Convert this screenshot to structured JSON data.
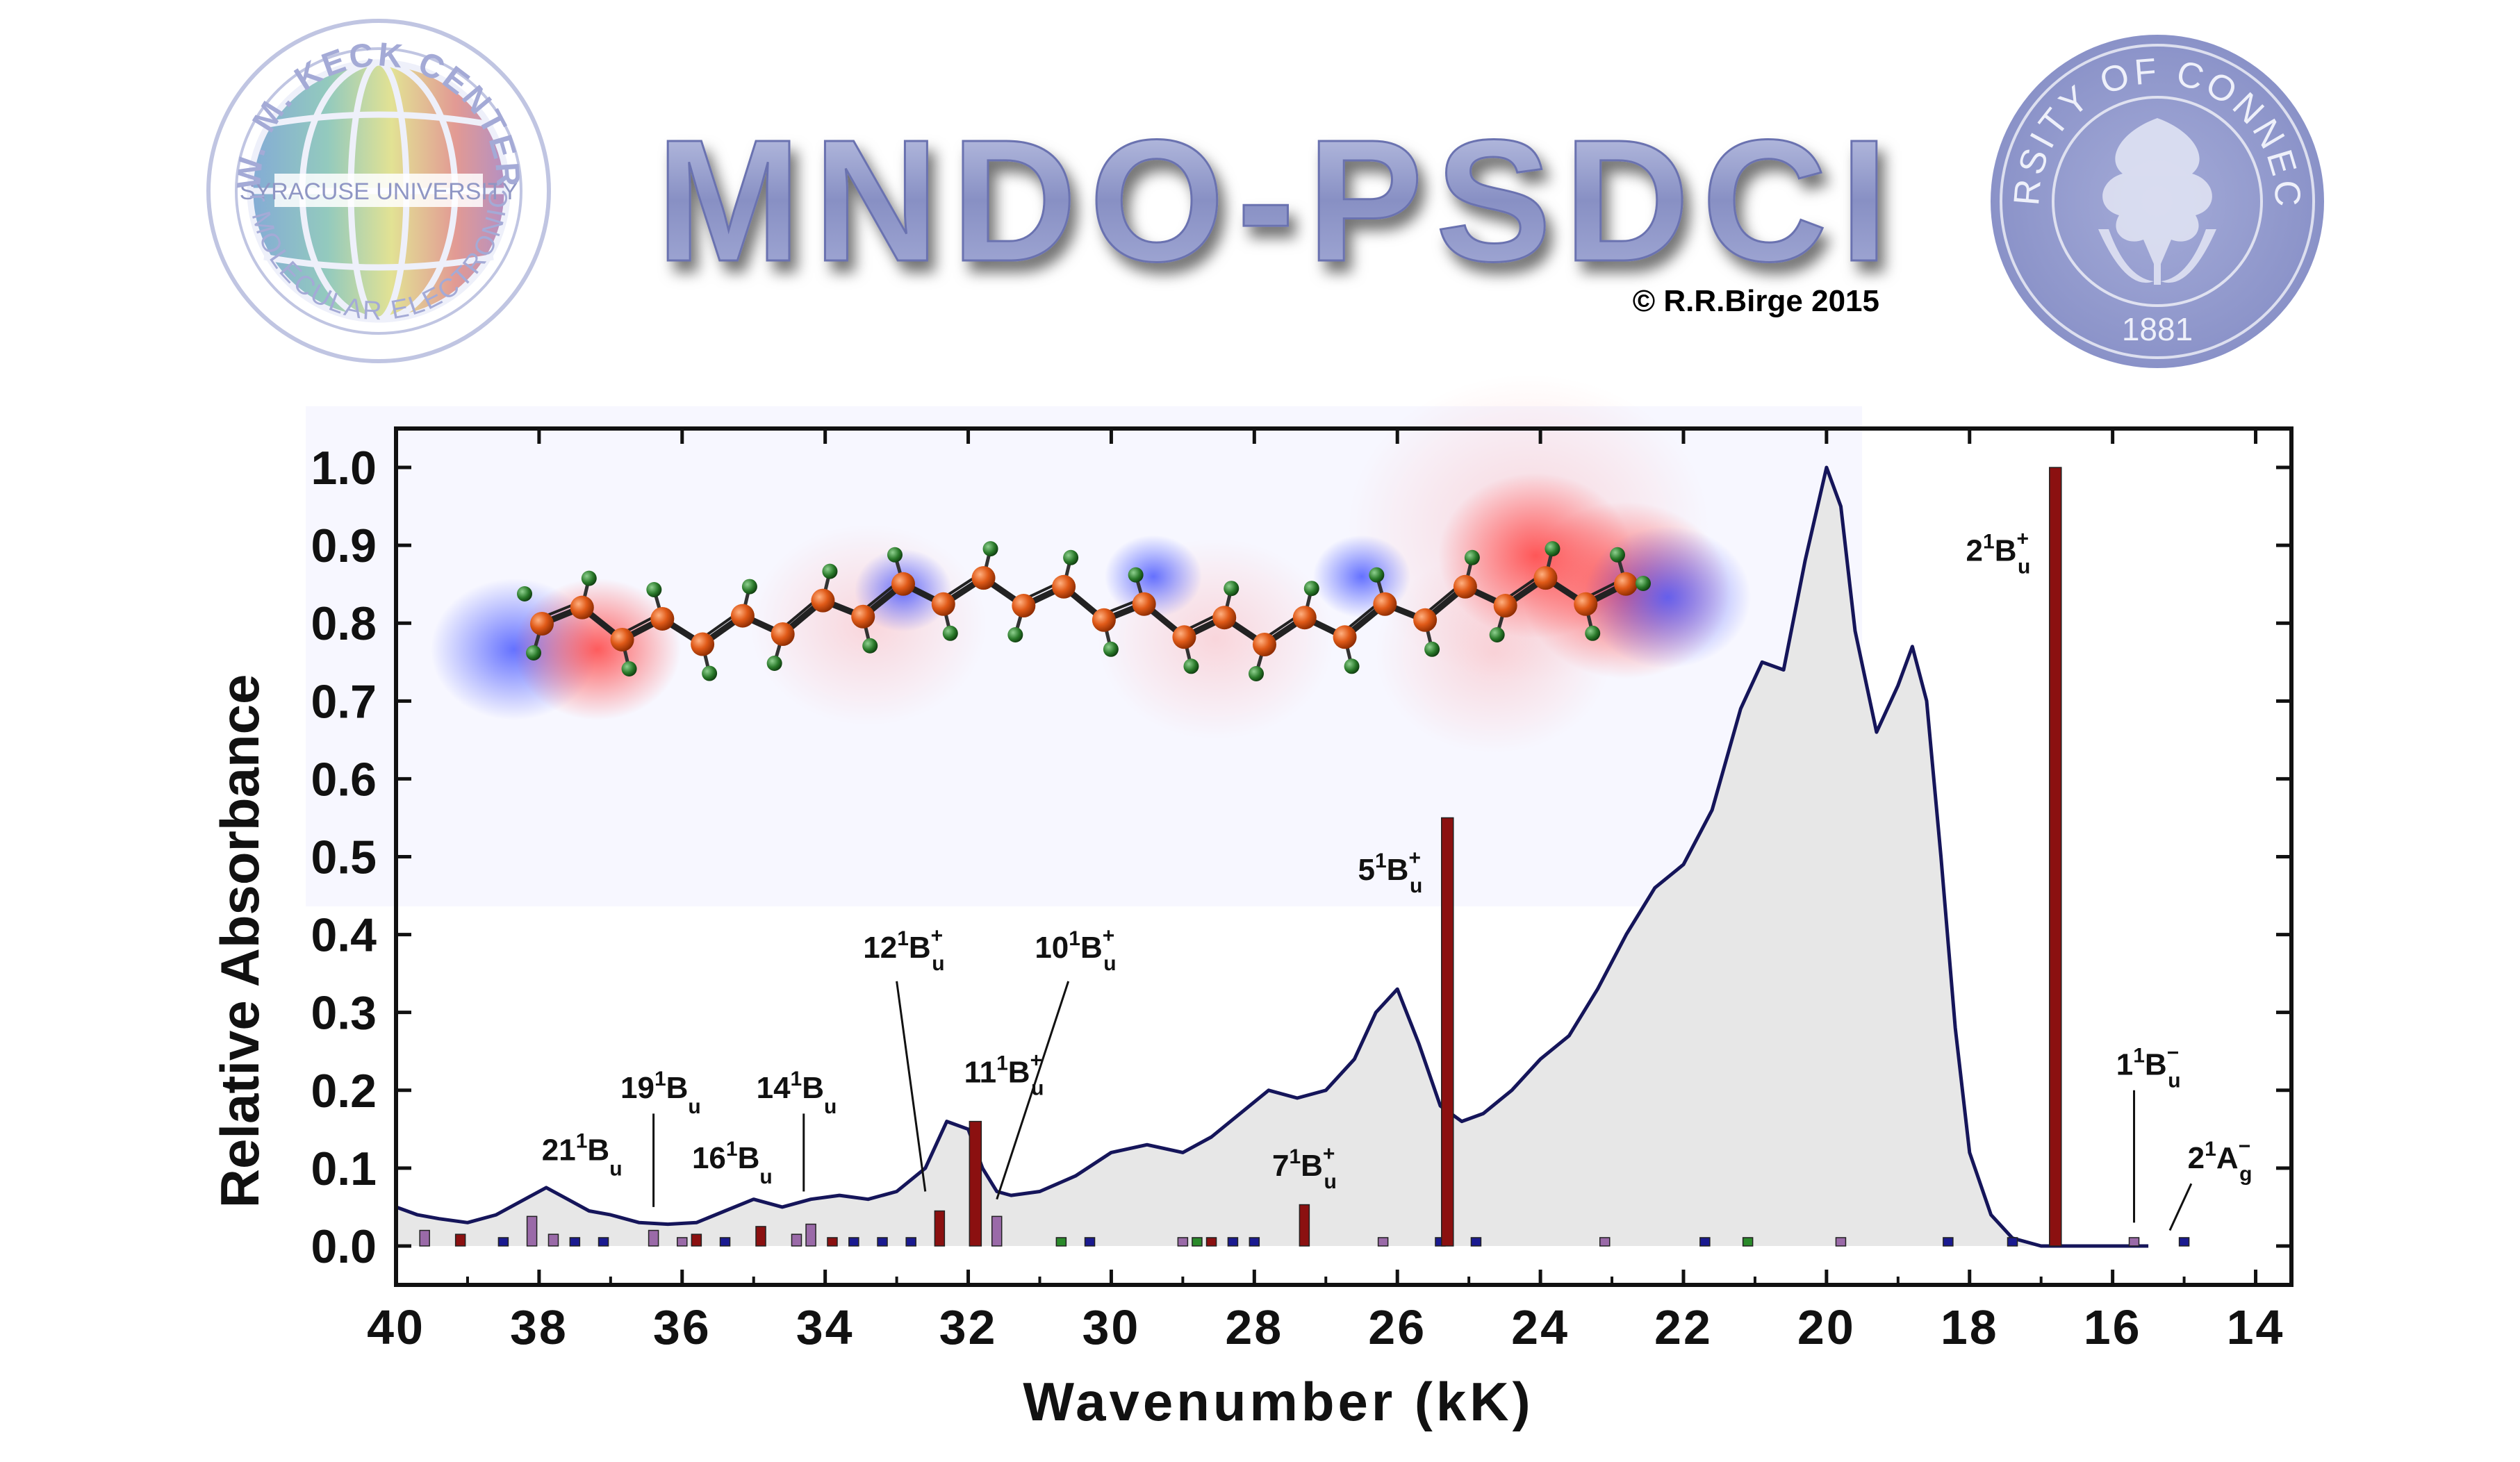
{
  "header": {
    "title": "MNDO-PSDCI",
    "copyright": "© R.R.Birge 2015",
    "left_seal": {
      "ring_top": "W. M. KECK CENTER",
      "ring_bottom": "for MOLECULAR ELECTRONICS",
      "center": "SYRACUSE UNIVERSITY"
    },
    "right_seal": {
      "ring": "UNIVERSITY OF CONNECTICUT",
      "year": "1881"
    }
  },
  "colors": {
    "spectrum_line": "#15155a",
    "spectrum_fill": "#e4e4e4",
    "bar_red": "#8b1010",
    "bar_purple": "#9a6aa8",
    "bar_blue": "#1a1a90",
    "bar_green": "#2a8a2a",
    "title_blue": "#8a92c8"
  },
  "chart_data": {
    "type": "line",
    "xlabel": "Wavenumber (kK)",
    "ylabel": "Relative Absorbance",
    "xlim": [
      40,
      13.5
    ],
    "ylim": [
      -0.05,
      1.05
    ],
    "x_reversed": true,
    "x_ticks": [
      "40",
      "38",
      "36",
      "34",
      "32",
      "30",
      "28",
      "26",
      "24",
      "22",
      "20",
      "18",
      "16",
      "14"
    ],
    "y_ticks": [
      "0.0",
      "0.1",
      "0.2",
      "0.3",
      "0.4",
      "0.5",
      "0.6",
      "0.7",
      "0.8",
      "0.9",
      "1.0"
    ],
    "spectrum": {
      "x": [
        40.0,
        39.7,
        39.4,
        39.0,
        38.6,
        38.2,
        37.9,
        37.6,
        37.3,
        37.0,
        36.6,
        36.2,
        35.8,
        35.4,
        35.0,
        34.6,
        34.2,
        33.8,
        33.4,
        33.0,
        32.6,
        32.3,
        32.0,
        31.8,
        31.6,
        31.4,
        31.0,
        30.5,
        30.0,
        29.5,
        29.0,
        28.6,
        28.2,
        27.8,
        27.4,
        27.0,
        26.6,
        26.3,
        26.0,
        25.7,
        25.4,
        25.1,
        24.8,
        24.4,
        24.0,
        23.6,
        23.2,
        22.8,
        22.4,
        22.0,
        21.6,
        21.2,
        20.9,
        20.6,
        20.3,
        20.0,
        19.8,
        19.6,
        19.3,
        19.0,
        18.8,
        18.6,
        18.4,
        18.2,
        18.0,
        17.7,
        17.4,
        17.0,
        16.6,
        16.0,
        15.5
      ],
      "y": [
        0.05,
        0.04,
        0.035,
        0.03,
        0.04,
        0.06,
        0.075,
        0.06,
        0.045,
        0.04,
        0.03,
        0.028,
        0.03,
        0.045,
        0.06,
        0.05,
        0.06,
        0.065,
        0.06,
        0.07,
        0.1,
        0.16,
        0.15,
        0.1,
        0.07,
        0.065,
        0.07,
        0.09,
        0.12,
        0.13,
        0.12,
        0.14,
        0.17,
        0.2,
        0.19,
        0.2,
        0.24,
        0.3,
        0.33,
        0.26,
        0.18,
        0.16,
        0.17,
        0.2,
        0.24,
        0.27,
        0.33,
        0.4,
        0.46,
        0.49,
        0.56,
        0.69,
        0.75,
        0.74,
        0.88,
        1.0,
        0.95,
        0.79,
        0.66,
        0.72,
        0.77,
        0.7,
        0.5,
        0.28,
        0.12,
        0.04,
        0.01,
        0.0,
        0.0,
        0.0,
        0.0
      ]
    },
    "transitions": [
      {
        "x": 39.6,
        "y": 0.02,
        "color": "purple"
      },
      {
        "x": 39.1,
        "y": 0.015,
        "color": "red"
      },
      {
        "x": 38.5,
        "y": 0.01,
        "color": "blue"
      },
      {
        "x": 38.1,
        "y": 0.038,
        "color": "purple"
      },
      {
        "x": 37.8,
        "y": 0.015,
        "color": "purple"
      },
      {
        "x": 37.5,
        "y": 0.01,
        "color": "blue"
      },
      {
        "x": 37.1,
        "y": 0.01,
        "color": "blue"
      },
      {
        "x": 36.4,
        "y": 0.02,
        "color": "purple"
      },
      {
        "x": 36.0,
        "y": 0.01,
        "color": "purple"
      },
      {
        "x": 35.8,
        "y": 0.015,
        "color": "red"
      },
      {
        "x": 35.4,
        "y": 0.01,
        "color": "blue"
      },
      {
        "x": 34.9,
        "y": 0.025,
        "color": "red"
      },
      {
        "x": 34.4,
        "y": 0.015,
        "color": "purple"
      },
      {
        "x": 34.2,
        "y": 0.028,
        "color": "purple"
      },
      {
        "x": 33.9,
        "y": 0.01,
        "color": "red"
      },
      {
        "x": 33.6,
        "y": 0.01,
        "color": "blue"
      },
      {
        "x": 33.2,
        "y": 0.01,
        "color": "blue"
      },
      {
        "x": 32.8,
        "y": 0.01,
        "color": "blue"
      },
      {
        "x": 32.4,
        "y": 0.045,
        "color": "red"
      },
      {
        "x": 31.9,
        "y": 0.16,
        "color": "red"
      },
      {
        "x": 31.6,
        "y": 0.038,
        "color": "purple"
      },
      {
        "x": 30.7,
        "y": 0.01,
        "color": "green"
      },
      {
        "x": 30.3,
        "y": 0.01,
        "color": "blue"
      },
      {
        "x": 29.0,
        "y": 0.01,
        "color": "purple"
      },
      {
        "x": 28.8,
        "y": 0.01,
        "color": "green"
      },
      {
        "x": 28.6,
        "y": 0.01,
        "color": "red"
      },
      {
        "x": 28.3,
        "y": 0.01,
        "color": "blue"
      },
      {
        "x": 28.0,
        "y": 0.01,
        "color": "blue"
      },
      {
        "x": 27.3,
        "y": 0.053,
        "color": "red"
      },
      {
        "x": 26.2,
        "y": 0.01,
        "color": "purple"
      },
      {
        "x": 25.4,
        "y": 0.01,
        "color": "blue"
      },
      {
        "x": 25.3,
        "y": 0.55,
        "color": "red"
      },
      {
        "x": 24.9,
        "y": 0.01,
        "color": "blue"
      },
      {
        "x": 23.1,
        "y": 0.01,
        "color": "purple"
      },
      {
        "x": 21.7,
        "y": 0.01,
        "color": "blue"
      },
      {
        "x": 21.1,
        "y": 0.01,
        "color": "green"
      },
      {
        "x": 19.8,
        "y": 0.01,
        "color": "purple"
      },
      {
        "x": 18.3,
        "y": 0.01,
        "color": "blue"
      },
      {
        "x": 17.4,
        "y": 0.01,
        "color": "blue"
      },
      {
        "x": 16.8,
        "y": 1.0,
        "color": "red"
      },
      {
        "x": 15.7,
        "y": 0.01,
        "color": "purple"
      },
      {
        "x": 15.0,
        "y": 0.01,
        "color": "blue"
      }
    ],
    "annotations": [
      {
        "base": "21",
        "letter": "B",
        "sub": "u",
        "sup2": "",
        "tx": 37.4,
        "ty": 0.11,
        "leader": null
      },
      {
        "base": "19",
        "letter": "B",
        "sub": "u",
        "sup2": "",
        "tx": 36.3,
        "ty": 0.19,
        "leader": [
          36.4,
          0.17,
          36.4,
          0.05
        ]
      },
      {
        "base": "16",
        "letter": "B",
        "sub": "u",
        "sup2": "",
        "tx": 35.3,
        "ty": 0.1,
        "leader": null
      },
      {
        "base": "14",
        "letter": "B",
        "sub": "u",
        "sup2": "",
        "tx": 34.4,
        "ty": 0.19,
        "leader": [
          34.3,
          0.17,
          34.3,
          0.07
        ]
      },
      {
        "base": "12",
        "letter": "B",
        "sub": "u",
        "sup2": "+",
        "tx": 32.9,
        "ty": 0.37,
        "leader": [
          33.0,
          0.34,
          32.6,
          0.07
        ]
      },
      {
        "base": "10",
        "letter": "B",
        "sub": "u",
        "sup2": "+",
        "tx": 30.5,
        "ty": 0.37,
        "leader": [
          30.6,
          0.34,
          31.6,
          0.06
        ]
      },
      {
        "base": "11",
        "letter": "B",
        "sub": "u",
        "sup2": "+",
        "tx": 31.5,
        "ty": 0.21,
        "leader": null
      },
      {
        "base": "7",
        "letter": "B",
        "sub": "u",
        "sup2": "+",
        "tx": 27.3,
        "ty": 0.09,
        "leader": null
      },
      {
        "base": "5",
        "letter": "B",
        "sub": "u",
        "sup2": "+",
        "tx": 26.1,
        "ty": 0.47,
        "leader": null
      },
      {
        "base": "2",
        "letter": "B",
        "sub": "u",
        "sup2": "+",
        "tx": 17.6,
        "ty": 0.88,
        "leader": null
      },
      {
        "base": "1",
        "letter": "B",
        "sub": "u",
        "sup2": "−",
        "tx": 15.5,
        "ty": 0.22,
        "leader": [
          15.7,
          0.2,
          15.7,
          0.03
        ]
      },
      {
        "base": "2",
        "letter": "A",
        "sub": "g",
        "sup2": "−",
        "tx": 14.5,
        "ty": 0.1,
        "leader": [
          14.9,
          0.08,
          15.2,
          0.02
        ]
      }
    ]
  }
}
